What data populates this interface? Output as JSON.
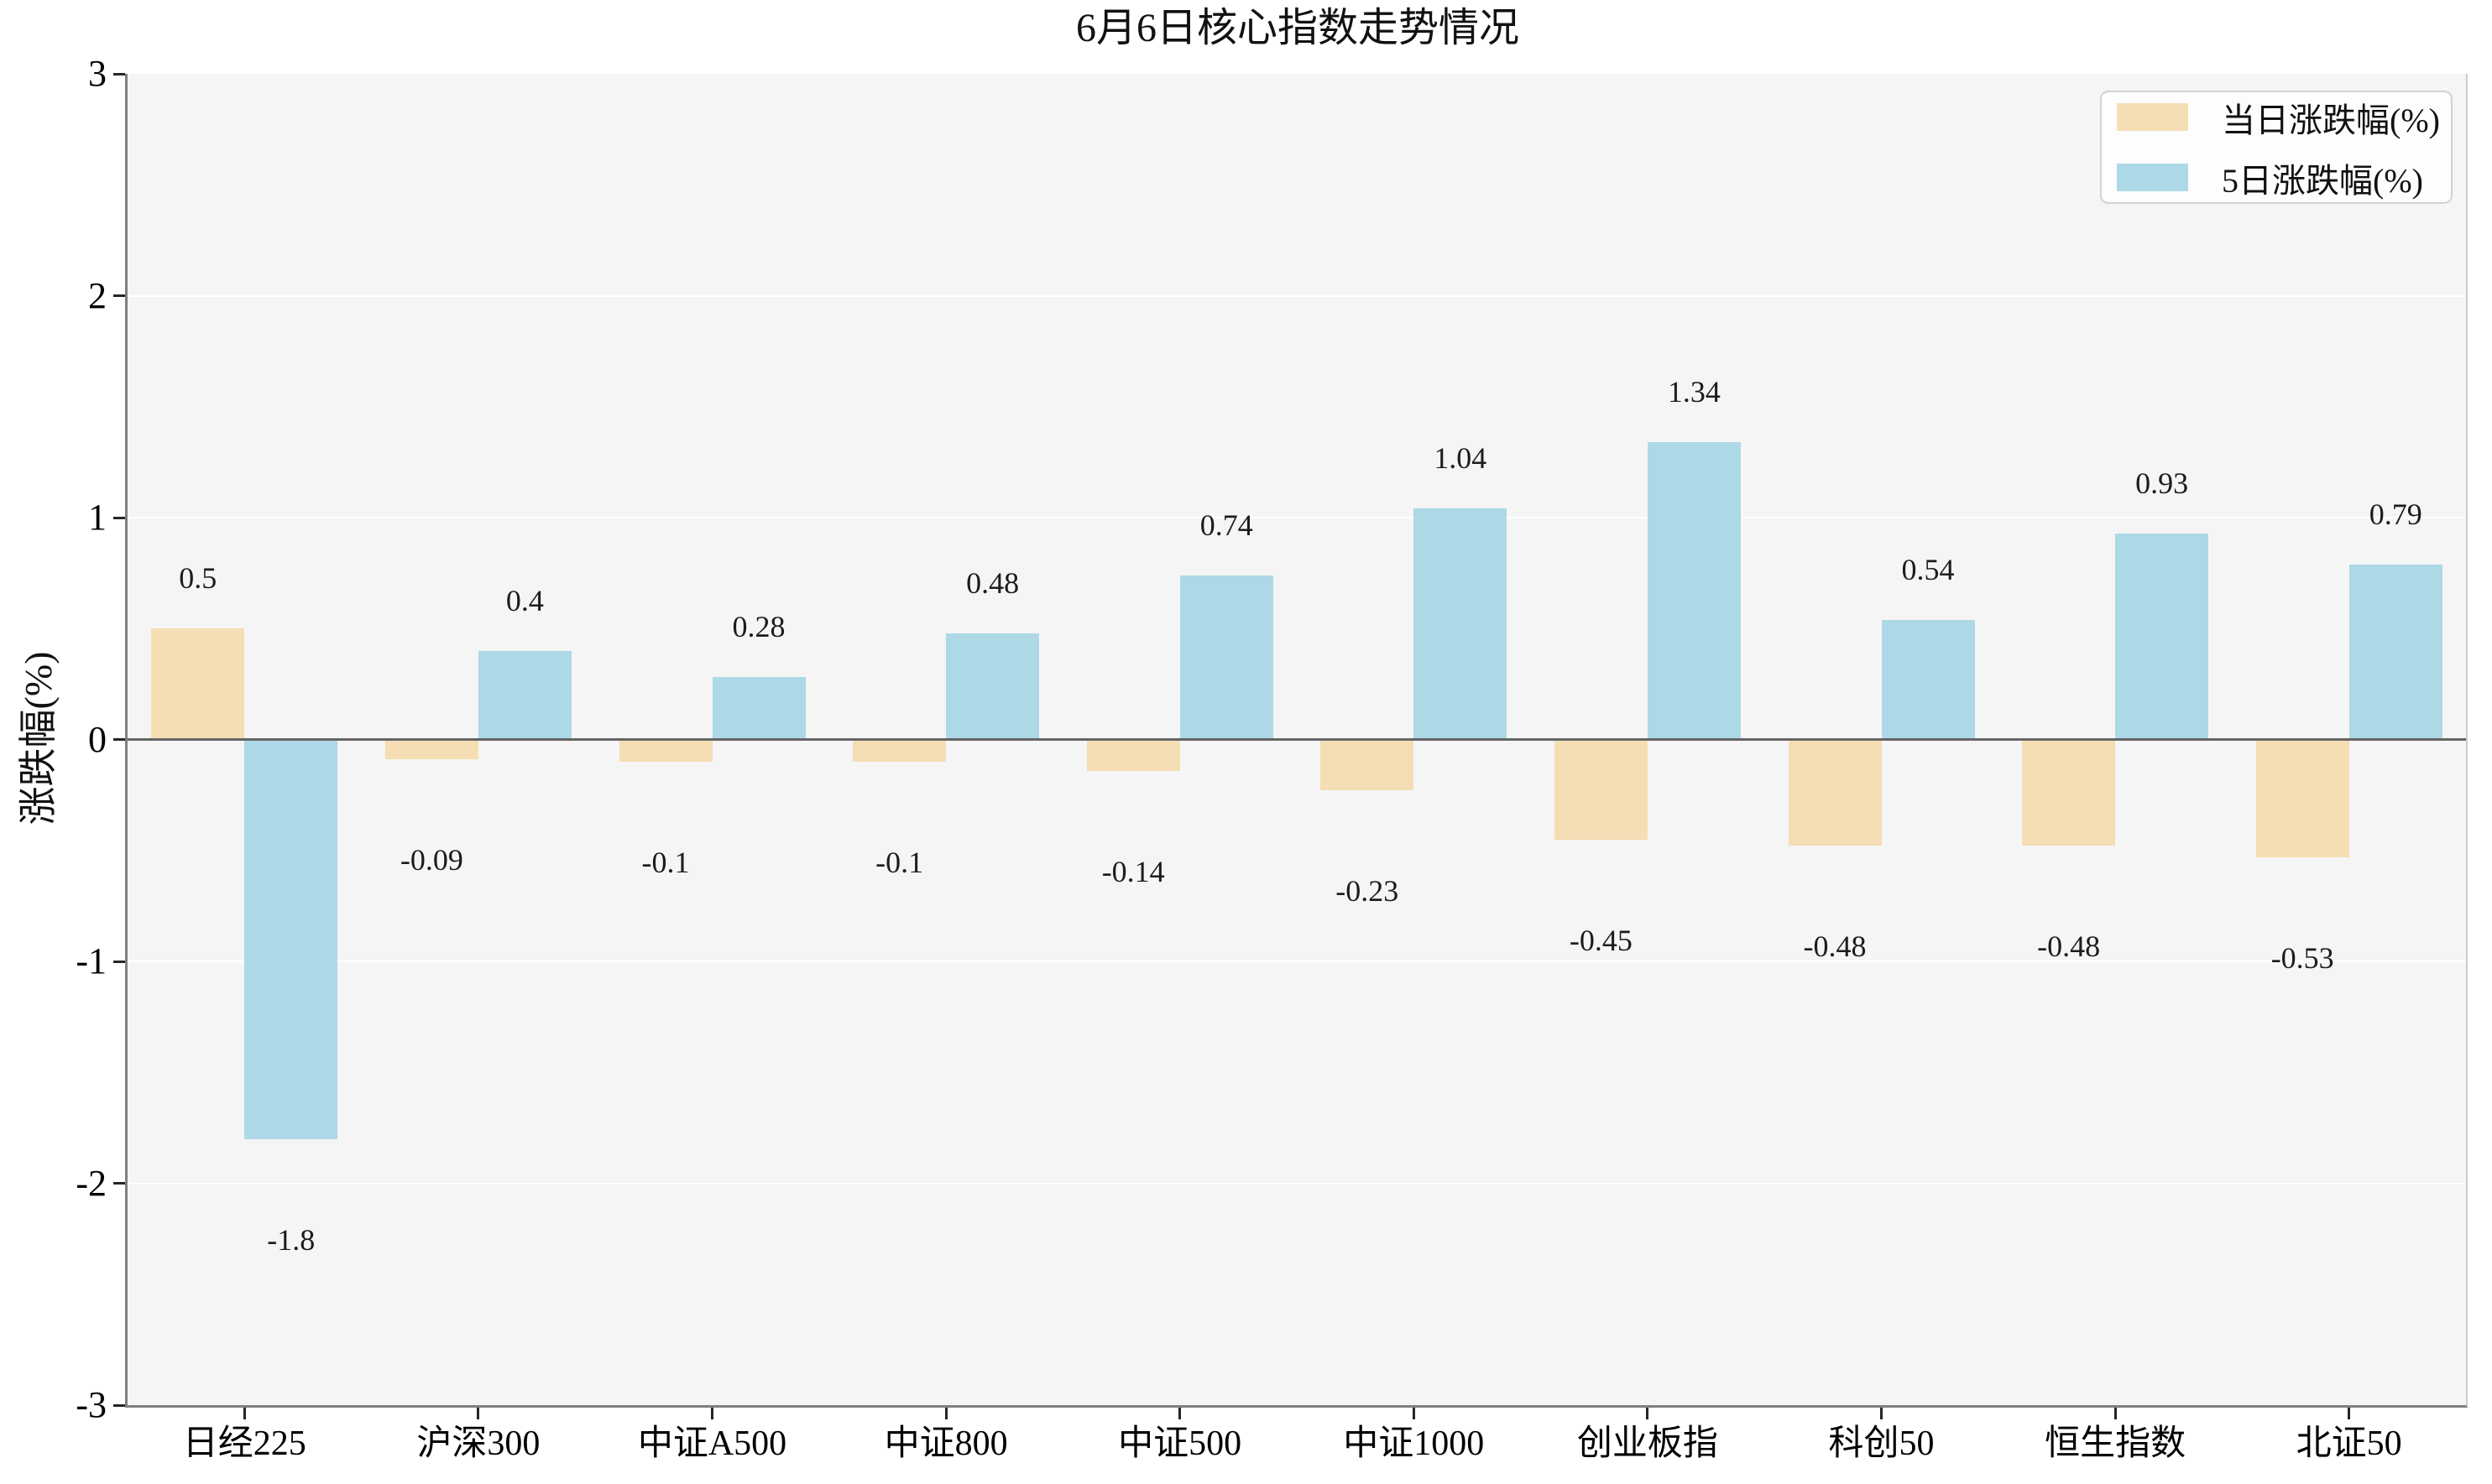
{
  "chart": {
    "title": "6月6日核心指数走势情况",
    "y_axis_label": "涨跌幅(%)"
  },
  "colors": {
    "series_daily": "#f5deb3",
    "series_5day": "#add8e6",
    "plot_background": "#f5f5f5",
    "gridline": "#ffffff",
    "zero_line": "#666666",
    "spine": "#7f7f7f",
    "tick": "#262626",
    "text": "#111111"
  },
  "chart_data": {
    "type": "bar",
    "title": "6月6日核心指数走势情况",
    "xlabel": "",
    "ylabel": "涨跌幅(%)",
    "ylim": [
      -3,
      3
    ],
    "yticks": [
      3,
      2,
      1,
      0,
      -1,
      -2,
      -3
    ],
    "grid": true,
    "legend_position": "upper right",
    "categories": [
      "日经225",
      "沪深300",
      "中证A500",
      "中证800",
      "中证500",
      "中证1000",
      "创业板指",
      "科创50",
      "恒生指数",
      "北证50"
    ],
    "series": [
      {
        "name": "当日涨跌幅(%)",
        "color": "#f5deb3",
        "values": [
          0.5,
          -0.09,
          -0.1,
          -0.1,
          -0.14,
          -0.23,
          -0.45,
          -0.48,
          -0.48,
          -0.53
        ]
      },
      {
        "name": "5日涨跌幅(%)",
        "color": "#add8e6",
        "values": [
          -1.8,
          0.4,
          0.28,
          0.48,
          0.74,
          1.04,
          1.34,
          0.54,
          0.93,
          0.79
        ]
      }
    ]
  }
}
